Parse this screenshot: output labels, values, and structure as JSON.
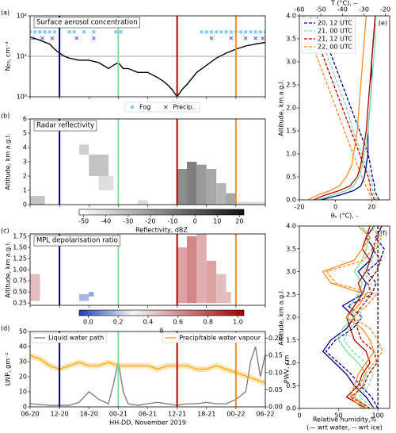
{
  "events": [
    {
      "x": 6,
      "color": "#00008b"
    },
    {
      "x": 18,
      "color": "#7be0a3"
    },
    {
      "x": 30,
      "color": "#b00000"
    },
    {
      "x": 42,
      "color": "#ff8c1a"
    }
  ],
  "chart_data": [
    {
      "type": "line",
      "label": "(a)",
      "title": "Surface aerosol concentration",
      "ylabel": "N₂₀, cm⁻³",
      "log_y": true,
      "ylim": [
        1,
        100
      ],
      "yticks": [
        {
          "value": 1,
          "label": "10⁰"
        },
        {
          "value": 10,
          "label": "10¹"
        },
        {
          "value": 100,
          "label": "10²"
        }
      ],
      "hline": 10,
      "legend": "below",
      "series": [
        {
          "color": "#000000",
          "x": [
            0,
            2,
            4,
            5,
            6,
            7,
            8,
            10,
            12,
            14,
            16,
            17,
            18,
            19,
            20,
            22,
            24,
            26,
            27,
            28,
            29,
            30,
            31,
            32,
            34,
            36,
            38,
            40,
            42,
            44,
            46,
            48
          ],
          "values": [
            30,
            25,
            20,
            15,
            12,
            10,
            9,
            8,
            8,
            7,
            5,
            6,
            7,
            5,
            5,
            4,
            4,
            3,
            2.5,
            2,
            1.5,
            1,
            1.5,
            2,
            4,
            6,
            9,
            12,
            15,
            18,
            20,
            22
          ]
        },
        {
          "name": "Fog",
          "marker": "o",
          "color": "#87cefa",
          "x": [
            0,
            1,
            2,
            3,
            4,
            5,
            8,
            9,
            11,
            13,
            17.5,
            18.5,
            35,
            36,
            37,
            38,
            39,
            40,
            41,
            42,
            43,
            44,
            45,
            46,
            47,
            48
          ],
          "values": [
            40,
            40,
            40,
            40,
            40,
            40,
            40,
            40,
            40,
            40,
            40,
            40,
            40,
            40,
            40,
            40,
            40,
            40,
            40,
            40,
            40,
            40,
            40,
            40,
            40,
            40
          ]
        },
        {
          "name": "Precip.",
          "marker": "x",
          "color": "#3a4fd0",
          "x": [
            0.5,
            2.5,
            4.5,
            9.5,
            13,
            37,
            41,
            44,
            46,
            47.5
          ],
          "values": [
            28,
            28,
            28,
            28,
            28,
            28,
            28,
            28,
            28,
            28
          ]
        }
      ]
    },
    {
      "type": "heatmap",
      "label": "(b)",
      "title": "Radar reflectivity",
      "ylabel": "Altitude, km a.g.l.",
      "ylim": [
        0,
        6
      ],
      "yticks": [
        0,
        1,
        2,
        3,
        4,
        5,
        6
      ],
      "cells": [
        [
          0,
          3,
          0,
          0.6,
          -30
        ],
        [
          10,
          12,
          3.5,
          4.2,
          -35
        ],
        [
          12,
          16,
          2,
          3.5,
          -30
        ],
        [
          14,
          17,
          1,
          2,
          -40
        ],
        [
          22,
          24,
          0,
          0.3,
          -40
        ],
        [
          30,
          32,
          0,
          2.5,
          -10
        ],
        [
          32,
          34,
          0,
          3,
          -5
        ],
        [
          34,
          36,
          0,
          2.8,
          -15
        ],
        [
          36,
          38,
          0,
          2.5,
          -20
        ],
        [
          38,
          40,
          0,
          1.5,
          -25
        ],
        [
          40,
          42,
          0,
          0.8,
          -20
        ],
        [
          42,
          48,
          0,
          0.2,
          -40
        ]
      ],
      "colorbar": {
        "label": "Reflectivity, dBZ",
        "lim": [
          -52,
          22
        ],
        "cmap": [
          [
            -52,
            "#ffffff"
          ],
          [
            22,
            "#111111"
          ]
        ],
        "ticks": [
          -50,
          -40,
          -30,
          -20,
          -10,
          0,
          10,
          20
        ]
      }
    },
    {
      "type": "heatmap",
      "label": "(c)",
      "title": "MPL depolarisation ratio",
      "ylabel": "Altitude, km a.g.l.",
      "ylim": [
        0.2,
        1.8
      ],
      "yticks": [
        0.25,
        {
          "value": 0.5,
          "label": "0.50"
        },
        0.75,
        {
          "value": 1,
          "label": "1.00"
        },
        1.25,
        {
          "value": 1.5,
          "label": "1.50"
        },
        1.75
      ],
      "cells": [
        [
          0,
          2,
          0.3,
          0.9,
          0.5
        ],
        [
          10,
          12,
          0.3,
          0.45,
          0.15
        ],
        [
          12,
          13,
          0.4,
          0.5,
          0.1
        ],
        [
          30,
          32,
          0.25,
          1.5,
          0.6
        ],
        [
          32,
          34,
          0.25,
          1.75,
          0.7
        ],
        [
          34,
          36,
          0.25,
          1.8,
          0.55
        ],
        [
          36,
          38,
          0.25,
          1.2,
          0.6
        ],
        [
          38,
          40,
          0.25,
          0.9,
          0.5
        ],
        [
          40,
          41,
          0.25,
          0.5,
          0.5
        ]
      ],
      "colorbar": {
        "label": "δ",
        "lim": [
          -0.06,
          1.04
        ],
        "cmap": [
          [
            -0.06,
            "#1f3fbf"
          ],
          [
            0.3,
            "#f5f5f5"
          ],
          [
            1.04,
            "#a50000"
          ]
        ],
        "ticks": [
          {
            "value": 0,
            "label": "0.0"
          },
          0.2,
          0.4,
          0.6,
          0.8,
          {
            "value": 1,
            "label": "1.0"
          }
        ]
      }
    },
    {
      "type": "line",
      "label": "(d)",
      "xlabel": "HH-DD, November 2019",
      "ylabel": "LWP, gm⁻²",
      "y2label": "PWV, cm",
      "legend": "top",
      "xlim": [
        0,
        48
      ],
      "xticks": [
        {
          "value": 0,
          "label": "06-20"
        },
        {
          "value": 6,
          "label": "12-20"
        },
        {
          "value": 12,
          "label": "18-20"
        },
        {
          "value": 18,
          "label": "00-21"
        },
        {
          "value": 24,
          "label": "06-21"
        },
        {
          "value": 30,
          "label": "12-21"
        },
        {
          "value": 36,
          "label": "18-21"
        },
        {
          "value": 42,
          "label": "00-22"
        },
        {
          "value": 48,
          "label": "06-22"
        }
      ],
      "ylim": [
        0,
        50
      ],
      "yticks": [
        0,
        10,
        20,
        30,
        40,
        50
      ],
      "y2lim": [
        0,
        0.22
      ],
      "y2ticks": [
        {
          "value": 0,
          "label": "0.00"
        },
        0.05,
        {
          "value": 0.1,
          "label": "0.10"
        },
        0.15,
        {
          "value": 0.2,
          "label": "0.20"
        }
      ],
      "series": [
        {
          "name": "Liquid water path",
          "color": "#808080",
          "x": [
            0,
            4,
            8,
            10,
            12,
            14,
            16,
            17,
            18,
            19,
            20,
            22,
            24,
            26,
            28,
            30,
            32,
            34,
            36,
            38,
            40,
            42,
            44,
            45,
            46,
            47,
            48
          ],
          "values": [
            2,
            1,
            1,
            3,
            10,
            5,
            2,
            15,
            30,
            10,
            2,
            1,
            2,
            3,
            2,
            1,
            2,
            2,
            3,
            2,
            2,
            5,
            10,
            30,
            40,
            20,
            35
          ]
        },
        {
          "name": "Precipitable water vapour",
          "color": "#ffa500",
          "axis": "y2",
          "x": [
            0,
            2,
            4,
            6,
            8,
            10,
            12,
            14,
            16,
            18,
            20,
            22,
            24,
            26,
            28,
            30,
            32,
            34,
            36,
            38,
            40,
            42,
            44,
            46,
            48
          ],
          "values": [
            0.15,
            0.14,
            0.12,
            0.11,
            0.12,
            0.13,
            0.12,
            0.12,
            0.13,
            0.12,
            0.12,
            0.12,
            0.12,
            0.11,
            0.12,
            0.12,
            0.12,
            0.11,
            0.11,
            0.12,
            0.11,
            0.1,
            0.09,
            0.08,
            0.07
          ]
        }
      ]
    },
    {
      "type": "profile",
      "label": "(e)",
      "ylabel": "Altitude, km a.g.l.",
      "xlabel": "θₑ (°C), -",
      "x2label": "T (°C), --",
      "legend": "upper left",
      "ylim": [
        0,
        4
      ],
      "yticks": [
        {
          "value": 0,
          "label": "0.0"
        },
        0.5,
        {
          "value": 1,
          "label": "1.0"
        },
        1.5,
        {
          "value": 2,
          "label": "2.0"
        },
        2.5,
        {
          "value": 3,
          "label": "3.0"
        },
        3.5,
        {
          "value": 4,
          "label": "4.0"
        }
      ],
      "xlim": [
        -20,
        30
      ],
      "xticks": [
        -20,
        0,
        20
      ],
      "x2lim": [
        -60,
        -18
      ],
      "x2ticks": [
        -60,
        -50,
        -40,
        -30,
        -20
      ],
      "y": [
        0,
        0.1,
        0.2,
        0.3,
        0.5,
        0.75,
        1,
        1.25,
        1.5,
        2,
        2.5,
        3,
        3.5,
        4
      ],
      "series": [
        {
          "name": "20, 12 UTC",
          "color": "#00008b",
          "dash": true,
          "axis": "x2",
          "values": [
            -23,
            -24,
            -25,
            -25,
            -26,
            -27,
            -28,
            -30,
            -32,
            -36,
            -40,
            -44,
            -48,
            -52
          ]
        },
        {
          "name": "21, 00 UTC",
          "color": "#7be0a3",
          "dash": true,
          "axis": "x2",
          "values": [
            -24,
            -25,
            -26,
            -26,
            -27,
            -29,
            -31,
            -33,
            -35,
            -38,
            -42,
            -46,
            -50,
            -54
          ]
        },
        {
          "name": "21, 12 UTC",
          "color": "#b00000",
          "dash": true,
          "axis": "x2",
          "values": [
            -25,
            -26,
            -27,
            -27,
            -28,
            -30,
            -32,
            -34,
            -36,
            -40,
            -44,
            -48,
            -52,
            -55
          ]
        },
        {
          "name": "22, 00 UTC",
          "color": "#ff8c1a",
          "dash": true,
          "axis": "x2",
          "values": [
            -26,
            -27,
            -28,
            -29,
            -31,
            -33,
            -35,
            -37,
            -39,
            -43,
            -47,
            -51,
            -55,
            -58
          ]
        },
        {
          "color": "#00008b",
          "values": [
            -8,
            2,
            10,
            14,
            16,
            17,
            18,
            18,
            18,
            19,
            20,
            20,
            21,
            22
          ]
        },
        {
          "color": "#7be0a3",
          "values": [
            -10,
            -2,
            6,
            10,
            13,
            15,
            16,
            17,
            18,
            19,
            20,
            21,
            22,
            22
          ]
        },
        {
          "color": "#b00000",
          "values": [
            -12,
            -6,
            2,
            8,
            12,
            14,
            15,
            16,
            17,
            18,
            19,
            20,
            21,
            22
          ]
        },
        {
          "color": "#ff8c1a",
          "values": [
            -15,
            -10,
            -3,
            2,
            6,
            9,
            10,
            11,
            12,
            13,
            14,
            15,
            16,
            17
          ]
        }
      ]
    },
    {
      "type": "profile",
      "label": "(f)",
      "ylabel": "Altitude, km a.g.l.",
      "xlabel": "Relative humidity,%",
      "xlabel2": "(— wrt water, -- wrt ice)",
      "vline": 100,
      "ylim": [
        0,
        4
      ],
      "yticks": [
        {
          "value": 0,
          "label": "0.0"
        },
        0.5,
        {
          "value": 1,
          "label": "1.0"
        },
        1.5,
        {
          "value": 2,
          "label": "2.0"
        },
        2.5,
        {
          "value": 3,
          "label": "3.0"
        },
        3.5,
        {
          "value": 4,
          "label": "4.0"
        }
      ],
      "xlim": [
        0,
        115
      ],
      "xticks": [
        0,
        50,
        100
      ],
      "y": [
        0,
        0.25,
        0.5,
        0.75,
        1,
        1.25,
        1.5,
        1.75,
        2,
        2.25,
        2.5,
        2.75,
        3,
        3.25,
        3.5,
        3.75,
        4
      ],
      "series": [
        {
          "color": "#00008b",
          "values": [
            95,
            85,
            70,
            60,
            45,
            30,
            40,
            60,
            70,
            55,
            80,
            85,
            75,
            90,
            95,
            85,
            95
          ]
        },
        {
          "color": "#00008b",
          "dash": true,
          "values": [
            100,
            92,
            78,
            66,
            50,
            34,
            46,
            68,
            80,
            62,
            92,
            98,
            86,
            103,
            108,
            97,
            105
          ]
        },
        {
          "color": "#7be0a3",
          "values": [
            90,
            70,
            80,
            85,
            75,
            60,
            50,
            55,
            70,
            65,
            75,
            80,
            70,
            80,
            85,
            90,
            80
          ]
        },
        {
          "color": "#7be0a3",
          "dash": true,
          "values": [
            95,
            76,
            88,
            94,
            84,
            68,
            57,
            63,
            80,
            75,
            86,
            92,
            81,
            92,
            98,
            104,
            93
          ]
        },
        {
          "color": "#b00000",
          "values": [
            85,
            60,
            75,
            80,
            90,
            85,
            70,
            65,
            60,
            70,
            80,
            75,
            85,
            90,
            80,
            85,
            90
          ]
        },
        {
          "color": "#b00000",
          "dash": true,
          "values": [
            90,
            66,
            82,
            88,
            99,
            95,
            79,
            74,
            69,
            80,
            92,
            87,
            98,
            104,
            93,
            99,
            105
          ]
        },
        {
          "color": "#ff8c1a",
          "values": [
            80,
            65,
            70,
            75,
            85,
            95,
            90,
            80,
            60,
            75,
            85,
            40,
            30,
            70,
            80,
            90,
            75
          ]
        },
        {
          "color": "#ff8c1a",
          "dash": true,
          "values": [
            85,
            70,
            77,
            83,
            95,
            106,
            100,
            90,
            68,
            86,
            98,
            46,
            35,
            82,
            93,
            105,
            88
          ]
        }
      ]
    }
  ]
}
